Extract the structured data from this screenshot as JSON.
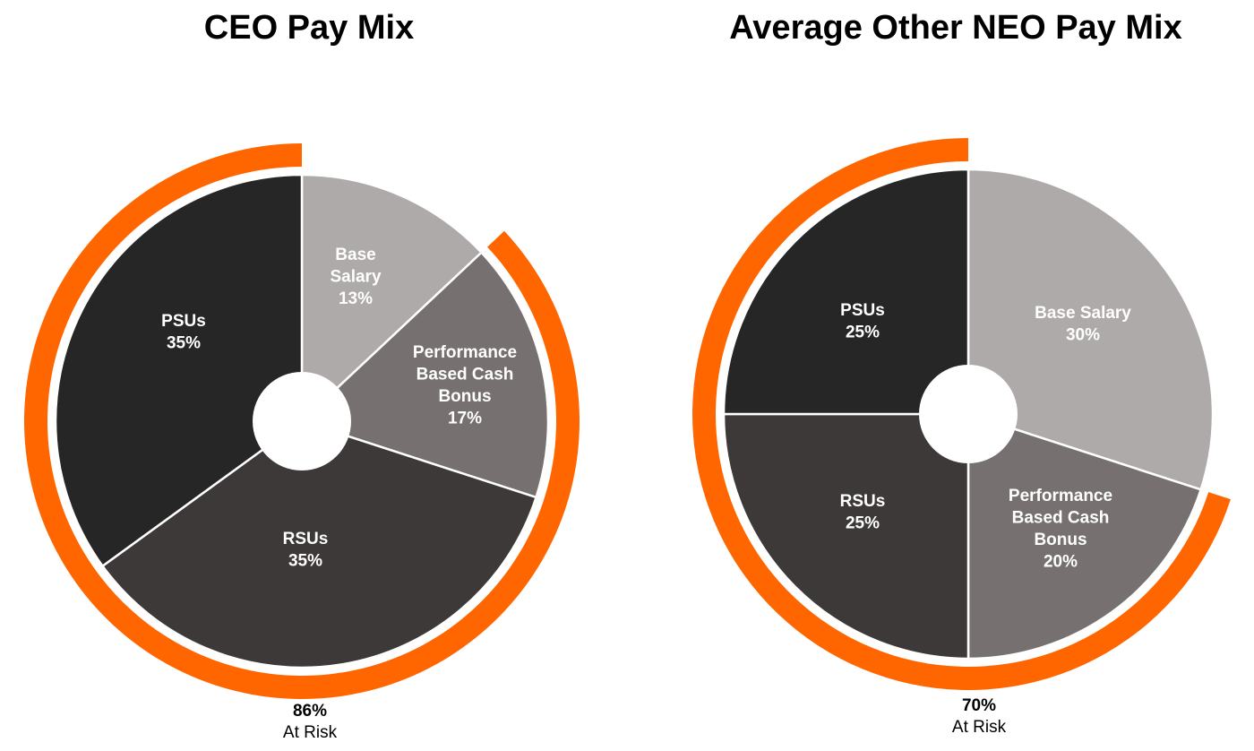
{
  "colors": {
    "psus": "#262626",
    "rsus": "#3d3939",
    "base_salary": "#aeaaa9",
    "bonus": "#767170",
    "at_risk_ring": "#ff6600",
    "divider": "#ffffff"
  },
  "charts": {
    "ceo": {
      "title": "CEO Pay Mix",
      "at_risk_pct": "86%",
      "at_risk_label": "At Risk",
      "slices": [
        {
          "key": "base_salary",
          "lines": [
            "Base",
            "Salary",
            "13%"
          ]
        },
        {
          "key": "bonus",
          "lines": [
            "Performance",
            "Based Cash",
            "Bonus",
            "17%"
          ]
        },
        {
          "key": "rsus",
          "lines": [
            "RSUs",
            "35%"
          ]
        },
        {
          "key": "psus",
          "lines": [
            "PSUs",
            "35%"
          ]
        }
      ]
    },
    "neo": {
      "title": "Average Other NEO Pay Mix",
      "at_risk_pct": "70%",
      "at_risk_label": "At Risk",
      "slices": [
        {
          "key": "base_salary",
          "lines": [
            "Base Salary",
            "30%"
          ]
        },
        {
          "key": "bonus",
          "lines": [
            "Performance",
            "Based Cash",
            "Bonus",
            "20%"
          ]
        },
        {
          "key": "rsus",
          "lines": [
            "RSUs",
            "25%"
          ]
        },
        {
          "key": "psus",
          "lines": [
            "PSUs",
            "25%"
          ]
        }
      ]
    }
  },
  "chart_data": [
    {
      "type": "pie",
      "title": "CEO Pay Mix",
      "categories": [
        "Base Salary",
        "Performance Based Cash Bonus",
        "RSUs",
        "PSUs"
      ],
      "values": [
        13,
        17,
        35,
        35
      ],
      "unit": "%",
      "donut": true,
      "annotation": {
        "ring": "At Risk",
        "value": 86,
        "covers": [
          "Performance Based Cash Bonus",
          "RSUs",
          "PSUs"
        ],
        "text": "86% At Risk"
      },
      "start_angle": "12 o'clock, clockwise"
    },
    {
      "type": "pie",
      "title": "Average Other NEO Pay Mix",
      "categories": [
        "Base Salary",
        "Performance Based Cash Bonus",
        "RSUs",
        "PSUs"
      ],
      "values": [
        30,
        20,
        25,
        25
      ],
      "unit": "%",
      "donut": true,
      "annotation": {
        "ring": "At Risk",
        "value": 70,
        "covers": [
          "Performance Based Cash Bonus",
          "RSUs",
          "PSUs"
        ],
        "text": "70% At Risk"
      },
      "start_angle": "12 o'clock, clockwise"
    }
  ]
}
